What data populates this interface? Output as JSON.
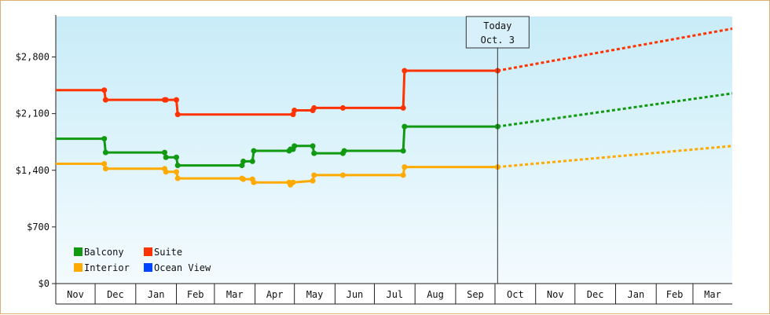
{
  "chart_data": {
    "type": "line",
    "title": "",
    "xlabel": "",
    "ylabel": "",
    "ylim": [
      0,
      3300
    ],
    "y_ticks": [
      {
        "value": 0,
        "label": "$0"
      },
      {
        "value": 700,
        "label": "$700"
      },
      {
        "value": 1400,
        "label": "$1,400"
      },
      {
        "value": 2100,
        "label": "$2,100"
      },
      {
        "value": 2800,
        "label": "$2,800"
      }
    ],
    "months": [
      "Nov",
      "Dec",
      "Jan",
      "Feb",
      "Mar",
      "Apr",
      "May",
      "Jun",
      "Jul",
      "Aug",
      "Sep",
      "Oct",
      "Nov",
      "Dec",
      "Jan",
      "Feb",
      "Mar"
    ],
    "xlim": [
      "2023-11-01",
      "2025-03-31"
    ],
    "today": {
      "date": "2024-10-03",
      "line1": "Today",
      "line2": "Oct. 3"
    },
    "legend": {
      "placement": "bottom-left"
    },
    "grid": false,
    "background_gradient": [
      "#c8ecf8",
      "#f4fbfe"
    ],
    "series": [
      {
        "name": "Suite",
        "color": "#ff3300",
        "points": [
          [
            "2023-11-01",
            2390
          ],
          [
            "2023-12-08",
            2390
          ],
          [
            "2023-12-09",
            2270
          ],
          [
            "2024-01-23",
            2270
          ],
          [
            "2024-01-24",
            2270
          ],
          [
            "2024-02-01",
            2270
          ],
          [
            "2024-02-02",
            2090
          ],
          [
            "2024-04-30",
            2090
          ],
          [
            "2024-05-01",
            2140
          ],
          [
            "2024-05-15",
            2140
          ],
          [
            "2024-05-16",
            2170
          ],
          [
            "2024-06-07",
            2170
          ],
          [
            "2024-07-23",
            2170
          ],
          [
            "2024-07-24",
            2630
          ],
          [
            "2024-10-03",
            2630
          ]
        ],
        "forecast": [
          [
            "2024-10-03",
            2630
          ],
          [
            "2025-03-31",
            3150
          ]
        ]
      },
      {
        "name": "Balcony",
        "color": "#119911",
        "points": [
          [
            "2023-11-01",
            1790
          ],
          [
            "2023-12-08",
            1790
          ],
          [
            "2023-12-09",
            1620
          ],
          [
            "2024-01-23",
            1620
          ],
          [
            "2024-01-24",
            1560
          ],
          [
            "2024-02-01",
            1560
          ],
          [
            "2024-02-02",
            1460
          ],
          [
            "2024-03-22",
            1460
          ],
          [
            "2024-03-23",
            1510
          ],
          [
            "2024-03-30",
            1510
          ],
          [
            "2024-03-31",
            1640
          ],
          [
            "2024-04-27",
            1640
          ],
          [
            "2024-04-28",
            1660
          ],
          [
            "2024-04-30",
            1660
          ],
          [
            "2024-05-01",
            1700
          ],
          [
            "2024-05-15",
            1700
          ],
          [
            "2024-05-16",
            1610
          ],
          [
            "2024-06-07",
            1610
          ],
          [
            "2024-06-08",
            1640
          ],
          [
            "2024-07-23",
            1640
          ],
          [
            "2024-07-24",
            1940
          ],
          [
            "2024-10-03",
            1940
          ]
        ],
        "forecast": [
          [
            "2024-10-03",
            1940
          ],
          [
            "2025-03-31",
            2350
          ]
        ]
      },
      {
        "name": "Interior",
        "color": "#ffaa00",
        "points": [
          [
            "2023-11-01",
            1480
          ],
          [
            "2023-12-08",
            1480
          ],
          [
            "2023-12-09",
            1420
          ],
          [
            "2024-01-23",
            1420
          ],
          [
            "2024-01-24",
            1380
          ],
          [
            "2024-02-01",
            1380
          ],
          [
            "2024-02-02",
            1300
          ],
          [
            "2024-03-22",
            1300
          ],
          [
            "2024-03-23",
            1290
          ],
          [
            "2024-03-30",
            1290
          ],
          [
            "2024-03-31",
            1250
          ],
          [
            "2024-04-27",
            1250
          ],
          [
            "2024-04-28",
            1220
          ],
          [
            "2024-04-30",
            1250
          ],
          [
            "2024-05-15",
            1270
          ],
          [
            "2024-05-16",
            1340
          ],
          [
            "2024-06-07",
            1340
          ],
          [
            "2024-07-23",
            1340
          ],
          [
            "2024-07-24",
            1440
          ],
          [
            "2024-10-03",
            1440
          ]
        ],
        "forecast": [
          [
            "2024-10-03",
            1440
          ],
          [
            "2025-03-31",
            1700
          ]
        ]
      },
      {
        "name": "Ocean View",
        "color": "#0044ff",
        "points": [],
        "forecast": []
      }
    ],
    "legend_order": [
      "Balcony",
      "Suite",
      "Interior",
      "Ocean View"
    ]
  }
}
